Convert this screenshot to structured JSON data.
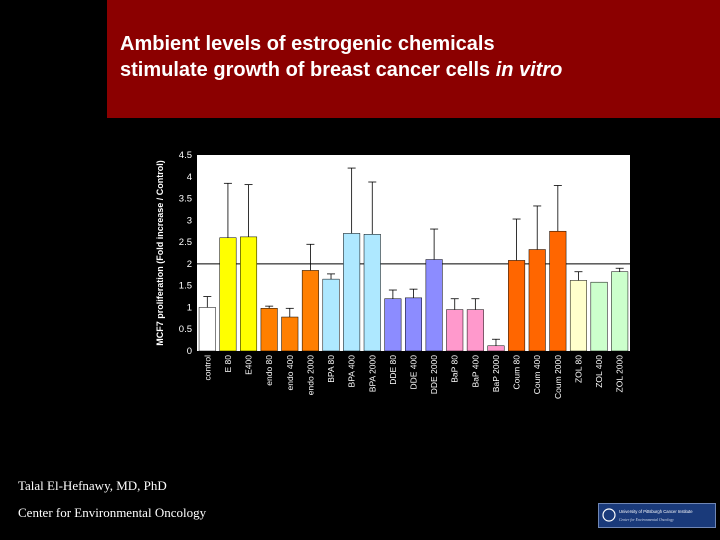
{
  "slide": {
    "title_line1": "Ambient levels of estrogenic chemicals",
    "title_line2_main": "stimulate growth of breast cancer cells ",
    "title_line2_italic": "in vitro",
    "author": "Talal El-Hefnawy, MD, PhD",
    "affiliation": "Center for Environmental Oncology",
    "logo_text_line1": "University of Pittsburgh Cancer Institute",
    "logo_text_line2": "Center for Environmental Oncology",
    "colors": {
      "title_band": "#8b0000",
      "background": "#000000",
      "logo_band": "#1a3a7a"
    }
  },
  "chart_data": {
    "type": "bar",
    "ylabel": "MCF7 proliferation (Fold increase / Control)",
    "xlabel": "",
    "ylim": [
      0,
      4.5
    ],
    "yticks": [
      "0",
      "0.5",
      "1",
      "1.5",
      "2",
      "2.5",
      "3",
      "3.5",
      "4",
      "4.5"
    ],
    "grid": false,
    "reference_line": 2,
    "categories": [
      "control",
      "E 80",
      "E400",
      "endo 80",
      "endo 400",
      "endo 2000",
      "BPA 80",
      "BPA 400",
      "BPA 2000",
      "DDE 80",
      "DDE 400",
      "DDE 2000",
      "BaP 80",
      "BaP 400",
      "BaP 2000",
      "Coum 80",
      "Coum 400",
      "Coum 2000",
      "ZOL 80",
      "ZOL 400",
      "ZOL 2000"
    ],
    "values": [
      1.0,
      2.6,
      2.62,
      0.98,
      0.78,
      1.85,
      1.65,
      2.7,
      2.68,
      1.2,
      1.22,
      2.1,
      0.95,
      0.95,
      0.12,
      2.08,
      2.33,
      2.75,
      1.62,
      1.58,
      1.82
    ],
    "error": [
      0.25,
      1.25,
      1.2,
      0.05,
      0.2,
      0.6,
      0.12,
      1.5,
      1.2,
      0.2,
      0.2,
      0.7,
      0.25,
      0.25,
      0.15,
      0.95,
      1.0,
      1.05,
      0.2,
      0.0,
      0.08
    ],
    "bar_colors": [
      "#ffffff",
      "#ffff00",
      "#ffff00",
      "#ff7f00",
      "#ff7f00",
      "#ff7f00",
      "#aee8ff",
      "#aee8ff",
      "#aee8ff",
      "#8c8cff",
      "#8c8cff",
      "#8c8cff",
      "#ff99cc",
      "#ff99cc",
      "#ff99cc",
      "#ff6600",
      "#ff6600",
      "#ff6600",
      "#ffffcc",
      "#ccffcc",
      "#ccffcc"
    ]
  }
}
